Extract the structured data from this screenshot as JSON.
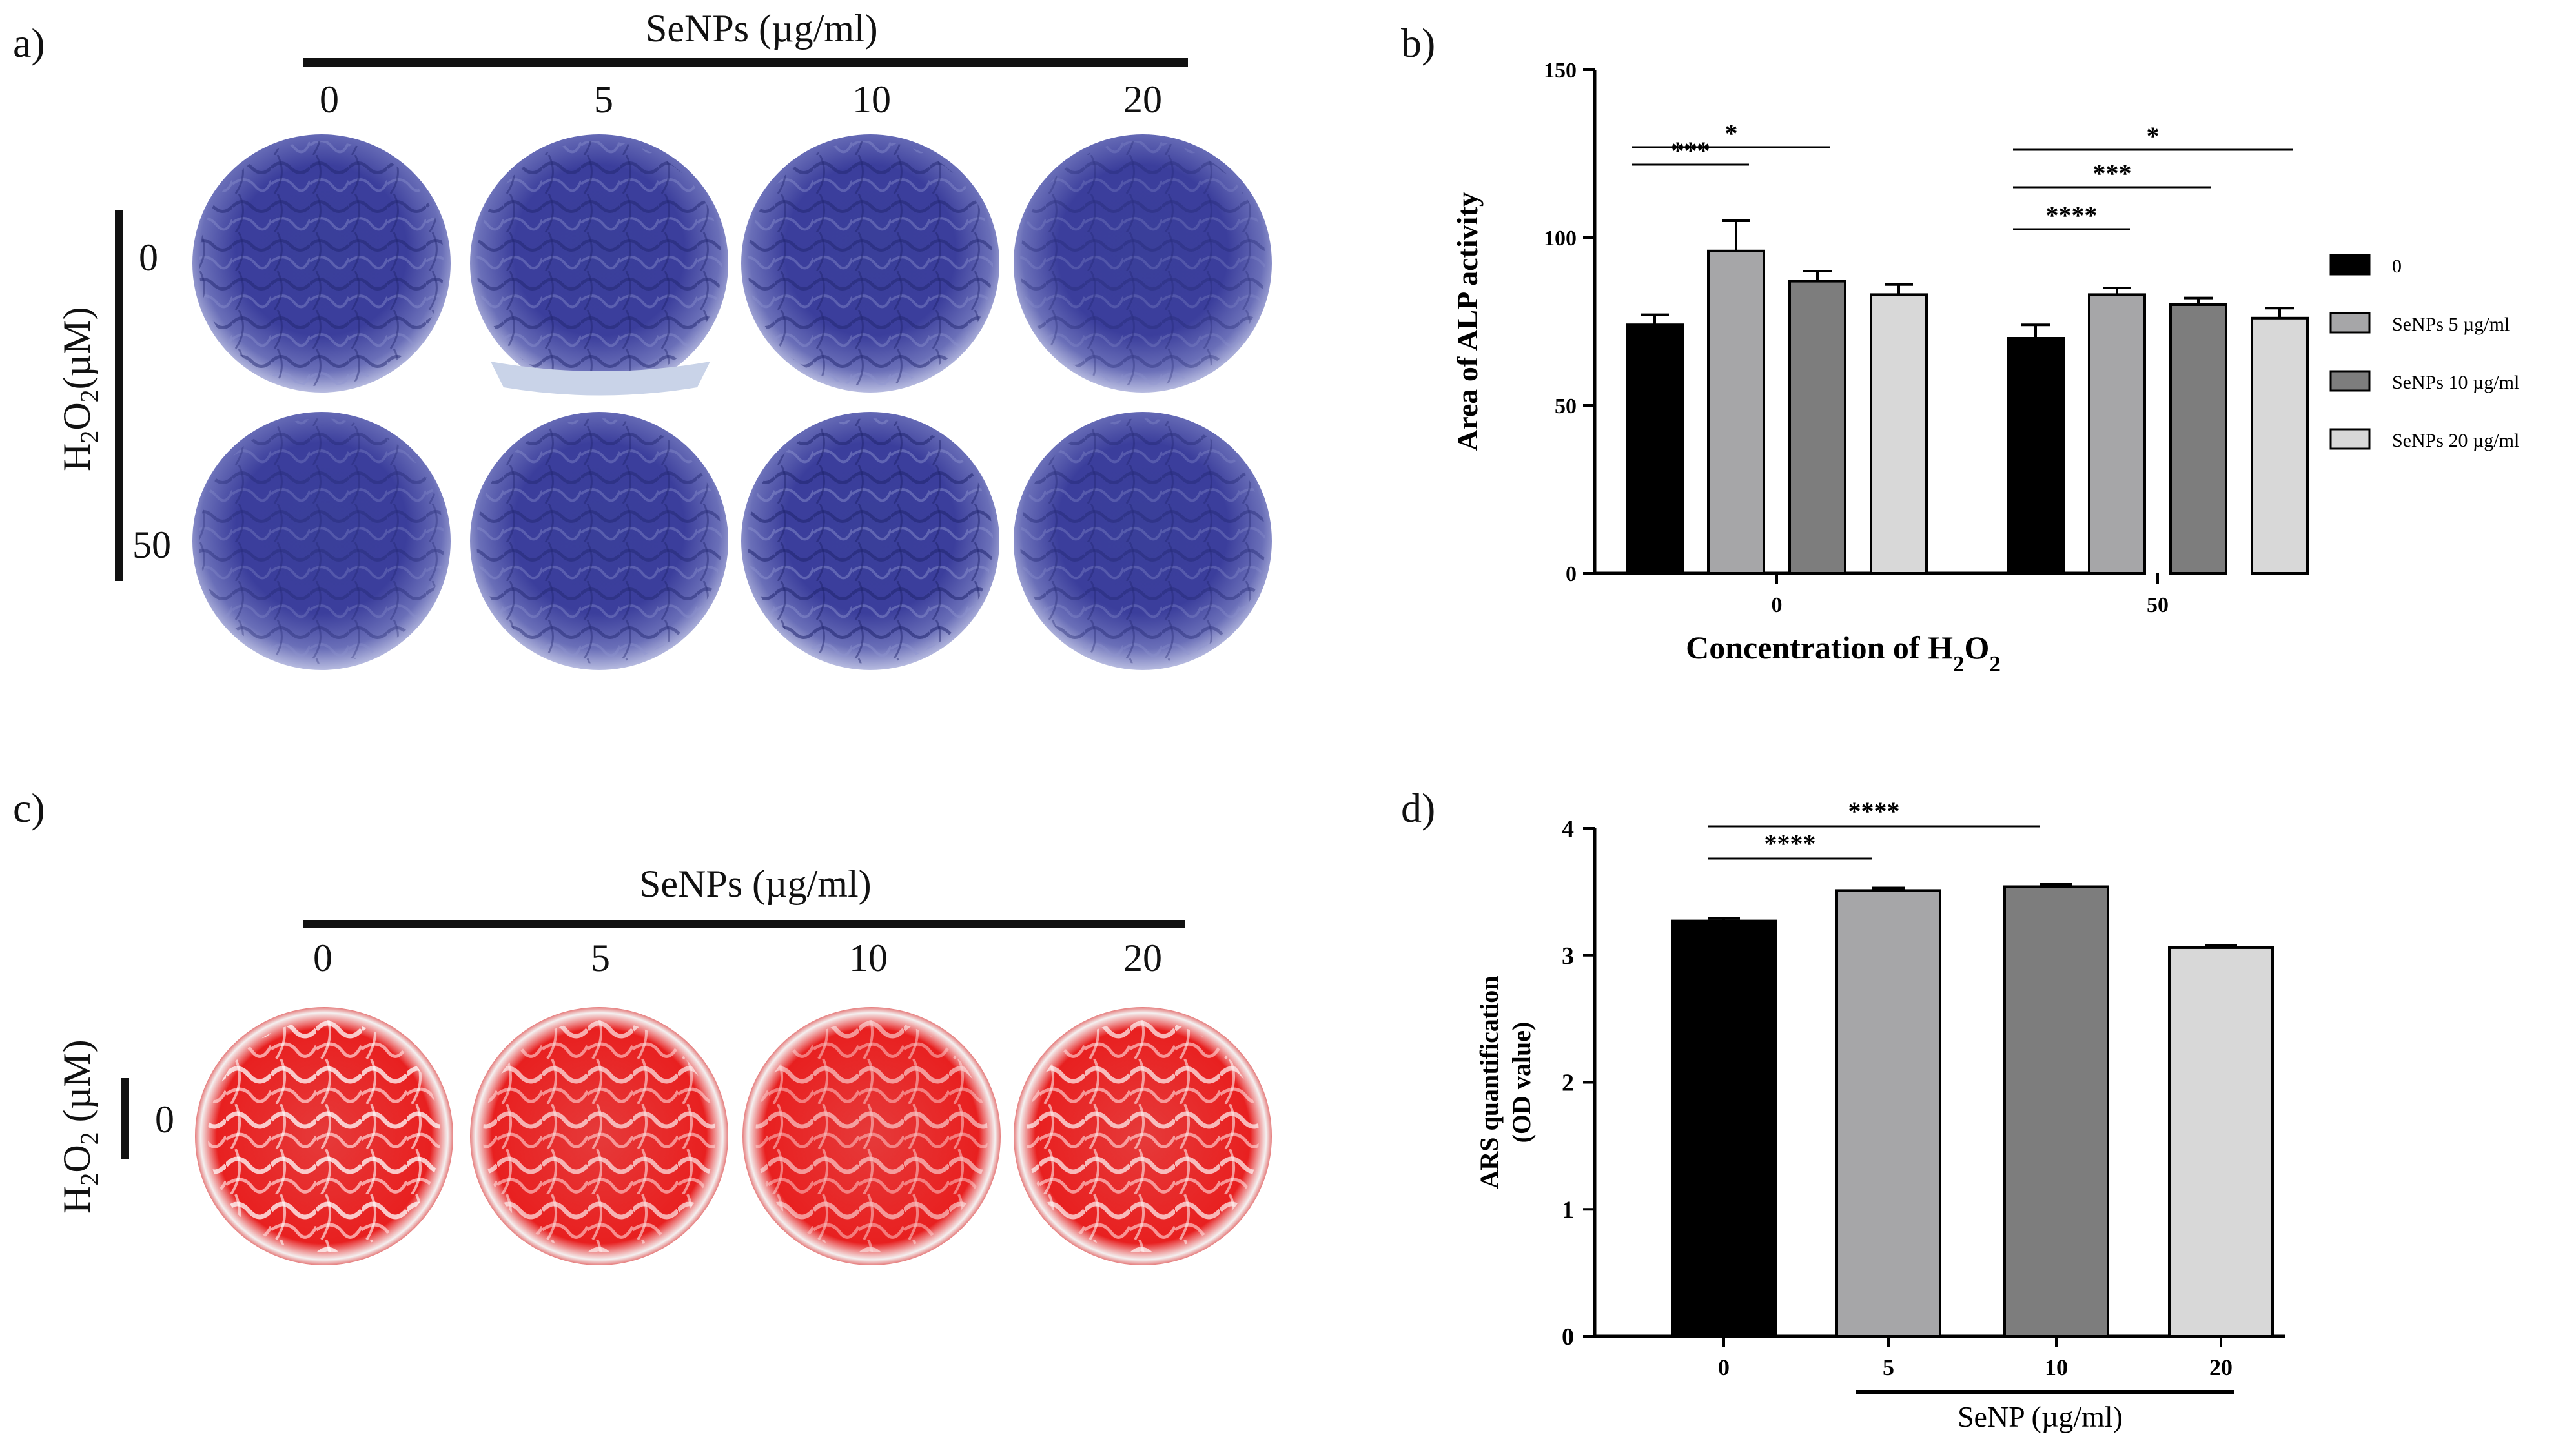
{
  "panel_a": {
    "label": "a)",
    "header": "SeNPs (µg/ml)",
    "conc_levels": [
      "0",
      "5",
      "10",
      "20"
    ],
    "h2o2_axis_label": "H2O2(µM)",
    "h2o2_levels": [
      "0",
      "50"
    ],
    "stain_color": "#2e3590"
  },
  "panel_c": {
    "label": "c)",
    "header": "SeNPs (µg/ml)",
    "conc_levels": [
      "0",
      "5",
      "10",
      "20"
    ],
    "h2o2_axis_label": "H2O2 (µM)",
    "h2o2_levels": [
      "0"
    ],
    "stain_color": "#e01a1a"
  },
  "chart_data": [
    {
      "panel": "b)",
      "type": "bar",
      "title": "",
      "xlabel": "Concentration of H2O2",
      "ylabel": "Area of ALP activity",
      "categories": [
        "0",
        "50"
      ],
      "ylim": [
        0,
        150
      ],
      "yticks": [
        "0",
        "50",
        "100",
        "150"
      ],
      "series": [
        {
          "name": "0",
          "values": [
            74,
            70
          ],
          "errors": [
            3,
            4
          ],
          "color": "#000000"
        },
        {
          "name": "SeNPs 5 µg/ml",
          "values": [
            96,
            83
          ],
          "errors": [
            9,
            2
          ],
          "color": "#a6a6a8"
        },
        {
          "name": "SeNPs 10 µg/ml",
          "values": [
            87,
            80
          ],
          "errors": [
            3,
            2
          ],
          "color": "#7d7d7d"
        },
        {
          "name": "SeNPs 20 µg/ml",
          "values": [
            83,
            76
          ],
          "errors": [
            3,
            3
          ],
          "color": "#d8d8d8"
        }
      ],
      "legend_position": "right",
      "significance": [
        {
          "label": "***",
          "group": 0,
          "from": 0,
          "to": 1
        },
        {
          "label": "*",
          "group": 0,
          "from": 0,
          "to": 2
        },
        {
          "label": "****",
          "group": 1,
          "from": 0,
          "to": 1
        },
        {
          "label": "***",
          "group": 1,
          "from": 0,
          "to": 2
        },
        {
          "label": "*",
          "group": 1,
          "from": 0,
          "to": 3
        }
      ]
    },
    {
      "panel": "d)",
      "type": "bar",
      "title": "",
      "xlabel": "SeNP (µg/ml)",
      "ylabel": "ARS quantification (OD value)",
      "ylabel_lines": [
        "ARS quantification",
        "(OD value)"
      ],
      "categories": [
        "0",
        "5",
        "10",
        "20"
      ],
      "values": [
        3.27,
        3.51,
        3.54,
        3.06
      ],
      "errors": [
        0.02,
        0.02,
        0.02,
        0.02
      ],
      "colors": [
        "#000000",
        "#a6a6a8",
        "#7d7d7d",
        "#d8d8d8"
      ],
      "ylim": [
        0,
        4
      ],
      "yticks": [
        "0",
        "1",
        "2",
        "3",
        "4"
      ],
      "significance": [
        {
          "label": "****",
          "from": 0,
          "to": 1
        },
        {
          "label": "****",
          "from": 0,
          "to": 2
        }
      ]
    }
  ]
}
